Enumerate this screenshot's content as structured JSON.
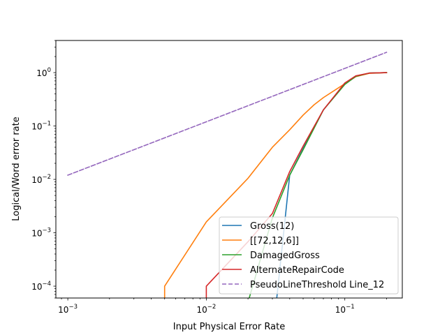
{
  "chart_data": {
    "type": "line",
    "title": "",
    "xlabel": "Input Physical Error Rate",
    "ylabel": "Logical/Word error rate",
    "xscale": "log",
    "yscale": "log",
    "xlim": [
      0.00082,
      0.26
    ],
    "ylim": [
      6e-05,
      4.0
    ],
    "x_ticks": [
      {
        "value": 0.001,
        "mantissa": "10",
        "exp": "−3"
      },
      {
        "value": 0.01,
        "mantissa": "10",
        "exp": "−2"
      },
      {
        "value": 0.1,
        "mantissa": "10",
        "exp": "−1"
      }
    ],
    "y_ticks": [
      {
        "value": 0.0001,
        "mantissa": "10",
        "exp": "−4"
      },
      {
        "value": 0.001,
        "mantissa": "10",
        "exp": "−3"
      },
      {
        "value": 0.01,
        "mantissa": "10",
        "exp": "−2"
      },
      {
        "value": 0.1,
        "mantissa": "10",
        "exp": "−1"
      },
      {
        "value": 1,
        "mantissa": "10",
        "exp": "0"
      }
    ],
    "legend_position": "lower-right",
    "grid": false,
    "series": [
      {
        "name": "Gross(12)",
        "color": "#1f77b4",
        "dash": "solid",
        "points": [
          [
            0.03,
            1e-05
          ],
          [
            0.04,
            0.012
          ],
          [
            0.05,
            0.038
          ],
          [
            0.07,
            0.2
          ],
          [
            0.1,
            0.62
          ],
          [
            0.12,
            0.86
          ],
          [
            0.15,
            0.98
          ],
          [
            0.2,
            1.0
          ]
        ]
      },
      {
        "name": "[[72,12,6]]",
        "color": "#ff7f0e",
        "dash": "solid",
        "points": [
          [
            0.005,
            1e-05
          ],
          [
            0.005,
            0.0001
          ],
          [
            0.01,
            0.0016
          ],
          [
            0.02,
            0.0105
          ],
          [
            0.03,
            0.04
          ],
          [
            0.04,
            0.085
          ],
          [
            0.05,
            0.16
          ],
          [
            0.06,
            0.25
          ],
          [
            0.07,
            0.34
          ],
          [
            0.1,
            0.62
          ],
          [
            0.12,
            0.84
          ],
          [
            0.15,
            0.97
          ],
          [
            0.2,
            1.0
          ]
        ]
      },
      {
        "name": "DamagedGross",
        "color": "#2ca02c",
        "dash": "solid",
        "points": [
          [
            0.02,
            1e-05
          ],
          [
            0.02,
            5e-05
          ],
          [
            0.03,
            0.0019
          ],
          [
            0.04,
            0.012
          ],
          [
            0.05,
            0.036
          ],
          [
            0.07,
            0.2
          ],
          [
            0.1,
            0.6
          ],
          [
            0.12,
            0.85
          ],
          [
            0.15,
            0.98
          ],
          [
            0.2,
            1.0
          ]
        ]
      },
      {
        "name": "AlternateRepairCode",
        "color": "#d62728",
        "dash": "solid",
        "points": [
          [
            0.01,
            1e-05
          ],
          [
            0.01,
            0.0001
          ],
          [
            0.02,
            0.00068
          ],
          [
            0.03,
            0.0023
          ],
          [
            0.04,
            0.014
          ],
          [
            0.05,
            0.042
          ],
          [
            0.07,
            0.2
          ],
          [
            0.1,
            0.64
          ],
          [
            0.12,
            0.87
          ],
          [
            0.15,
            0.98
          ],
          [
            0.2,
            1.0
          ]
        ]
      },
      {
        "name": "PseudoLineThreshold Line_12",
        "color": "#9467bd",
        "dash": "dashed",
        "points": [
          [
            0.001,
            0.012
          ],
          [
            0.2,
            2.4
          ]
        ]
      }
    ]
  }
}
